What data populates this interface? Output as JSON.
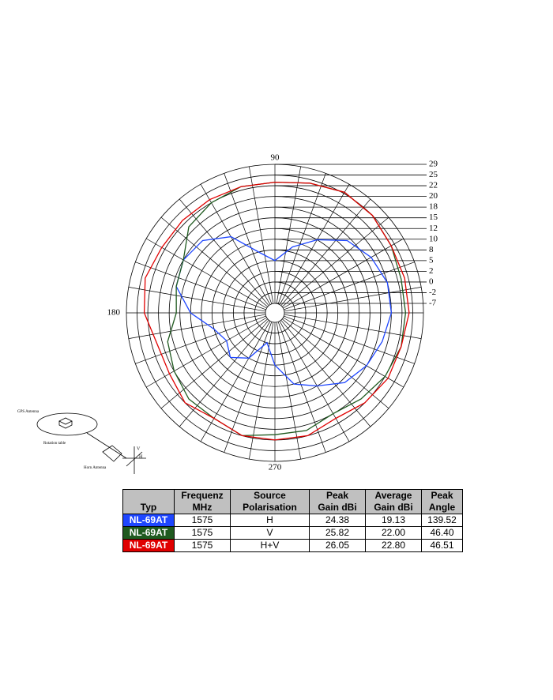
{
  "chart_data": {
    "type": "polar",
    "angle_ticks": [
      90,
      180,
      270
    ],
    "rlim": [
      -7,
      29
    ],
    "rticks": [
      -7,
      -2,
      0,
      2,
      5,
      8,
      10,
      12,
      15,
      18,
      20,
      22,
      25,
      29
    ],
    "angles": [
      0,
      15,
      30,
      45,
      60,
      75,
      90,
      105,
      120,
      135,
      150,
      165,
      180,
      195,
      210,
      225,
      240,
      255,
      270,
      285,
      300,
      315,
      330,
      345
    ],
    "series": [
      {
        "name": "H",
        "color": "#1e46ff",
        "values": [
          20,
          20,
          19,
          17,
          12,
          9,
          5,
          8,
          13,
          17,
          18,
          17,
          12,
          8,
          6,
          8,
          5,
          0,
          5,
          10,
          12,
          16,
          18,
          19
        ]
      },
      {
        "name": "V",
        "color": "#1f5a1f",
        "values": [
          23,
          23,
          24,
          25,
          25.5,
          24,
          23,
          23,
          22,
          21,
          18,
          17,
          16,
          19,
          20,
          21,
          21,
          22,
          21,
          21,
          20,
          21,
          22,
          23
        ]
      },
      {
        "name": "H+V",
        "color": "#e00000",
        "values": [
          24,
          24,
          24,
          25,
          25.5,
          24,
          23,
          23,
          23,
          23,
          23,
          24,
          23,
          21,
          21,
          22,
          21,
          22,
          22,
          22,
          21,
          22,
          23,
          23
        ]
      }
    ]
  },
  "diagram": {
    "gps": "GPS Antenna",
    "table": "Rotation table",
    "horn": "Horn Antenna",
    "v": "V",
    "h": "H"
  },
  "table": {
    "header": [
      "Typ",
      "Frequenz\nMHz",
      "Source\nPolarisation",
      "Peak\nGain dBi",
      "Average\nGain dBi",
      "Peak\nAngle"
    ],
    "rows": [
      [
        "NL-69AT",
        "1575",
        "H",
        "24.38",
        "19.13",
        "139.52"
      ],
      [
        "NL-69AT",
        "1575",
        "V",
        "25.82",
        "22.00",
        "46.40"
      ],
      [
        "NL-69AT",
        "1575",
        "H+V",
        "26.05",
        "22.80",
        "46.51"
      ]
    ]
  }
}
